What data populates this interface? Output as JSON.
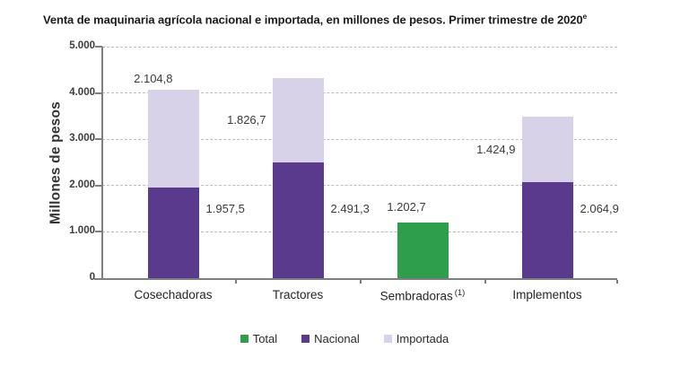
{
  "chart_data": {
    "type": "bar",
    "stacked": true,
    "title": "Venta de maquinaria agrícola nacional e importada, en millones de pesos. Primer trimestre de 2020",
    "title_superscript": "e",
    "ylabel": "Millones de pesos",
    "ylim": [
      0,
      5000
    ],
    "ytick_step": 1000,
    "grid": "horizontal-dashed",
    "legend_position": "bottom-center",
    "yticks": [
      {
        "value": 0,
        "label": "0"
      },
      {
        "value": 1000,
        "label": "1.000"
      },
      {
        "value": 2000,
        "label": "2.000"
      },
      {
        "value": 3000,
        "label": "3.000"
      },
      {
        "value": 4000,
        "label": "4.000"
      },
      {
        "value": 5000,
        "label": "5.000"
      }
    ],
    "series_colors": {
      "Total": "#2f9e4c",
      "Nacional": "#5a3a8c",
      "Importada": "#d7d2e8"
    },
    "legend": [
      {
        "label": "Total",
        "color": "#2f9e4c"
      },
      {
        "label": "Nacional",
        "color": "#5a3a8c"
      },
      {
        "label": "Importada",
        "color": "#d7d2e8"
      }
    ],
    "categories": [
      {
        "label": "Cosechadoras"
      },
      {
        "label": "Tractores"
      },
      {
        "label": "Sembradoras",
        "footnote": "(1)"
      },
      {
        "label": "Implementos"
      }
    ],
    "bars": [
      {
        "category": "Cosechadoras",
        "segments": [
          {
            "series": "Nacional",
            "value": 1957.5,
            "label": "1.957,5",
            "label_pos": "right"
          },
          {
            "series": "Importada",
            "value": 2104.8,
            "label": "2.104,8",
            "label_pos": "above-left"
          }
        ]
      },
      {
        "category": "Tractores",
        "segments": [
          {
            "series": "Nacional",
            "value": 2491.3,
            "label": "2.491,3",
            "label_pos": "right"
          },
          {
            "series": "Importada",
            "value": 1826.7,
            "label": "1.826,7",
            "label_pos": "left"
          }
        ]
      },
      {
        "category": "Sembradoras",
        "segments": [
          {
            "series": "Total",
            "value": 1202.7,
            "label": "1.202,7",
            "label_pos": "above"
          }
        ]
      },
      {
        "category": "Implementos",
        "segments": [
          {
            "series": "Nacional",
            "value": 2064.9,
            "label": "2.064,9",
            "label_pos": "right"
          },
          {
            "series": "Importada",
            "value": 1424.9,
            "label": "1.424,9",
            "label_pos": "left"
          }
        ]
      }
    ]
  }
}
